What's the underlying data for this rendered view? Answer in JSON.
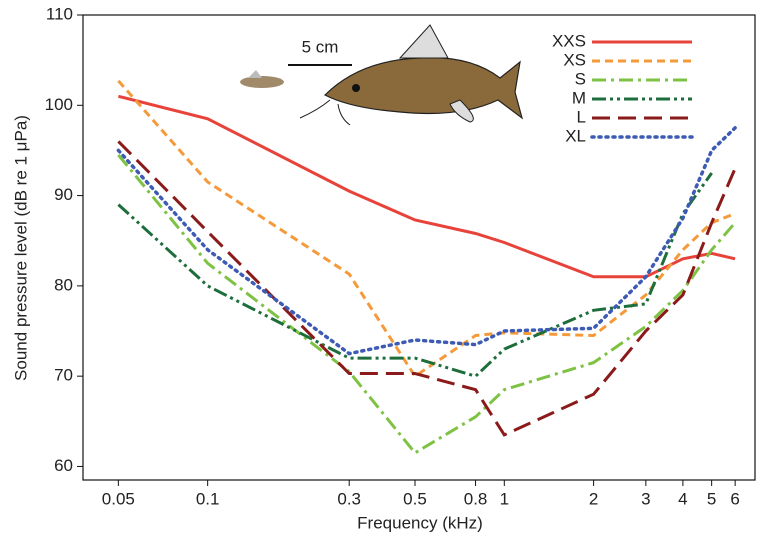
{
  "chart_data": {
    "type": "line",
    "x_label": "Frequency (kHz)",
    "y_label": "Sound pressure level (dB re 1 μPa)",
    "annotation": "5 cm",
    "x": [
      0.05,
      0.1,
      0.3,
      0.5,
      0.8,
      1,
      2,
      3,
      4,
      5,
      6
    ],
    "xlim": [
      0.038,
      7
    ],
    "xticks": [
      0.05,
      0.1,
      0.3,
      0.5,
      0.8,
      1,
      2,
      3,
      4,
      5,
      6
    ],
    "x_log_scale": true,
    "ylim": [
      58.5,
      110
    ],
    "yticks": [
      60,
      70,
      80,
      90,
      100,
      110
    ],
    "grid": false,
    "legend": "upper right",
    "series": [
      {
        "name": "XXS",
        "color": "#e8433a",
        "values": [
          101,
          98.5,
          90.5,
          87.3,
          85.8,
          84.8,
          81,
          81,
          83,
          83.6,
          83
        ]
      },
      {
        "name": "XS",
        "color": "#f59a3a",
        "values": [
          102.7,
          91.5,
          81.3,
          70,
          74.5,
          74.8,
          74.5,
          79,
          84,
          87,
          88
        ]
      },
      {
        "name": "S",
        "color": "#7dc242",
        "values": [
          94.5,
          82.5,
          70.5,
          61.5,
          65.5,
          68.5,
          71.5,
          75.5,
          79.5,
          84,
          87
        ]
      },
      {
        "name": "M",
        "color": "#1e6e3c",
        "values": [
          89,
          80,
          72,
          72,
          70,
          73,
          77.3,
          78,
          88,
          92.5,
          null
        ]
      },
      {
        "name": "L",
        "color": "#8b1a1a",
        "values": [
          96,
          86,
          70.3,
          70.3,
          68.5,
          63.5,
          68,
          75,
          79,
          87,
          93
        ]
      },
      {
        "name": "XL",
        "color": "#3d5bb5",
        "values": [
          95,
          84,
          72.5,
          74,
          73.5,
          75,
          75.3,
          81,
          87.5,
          95,
          97.5
        ]
      }
    ]
  }
}
